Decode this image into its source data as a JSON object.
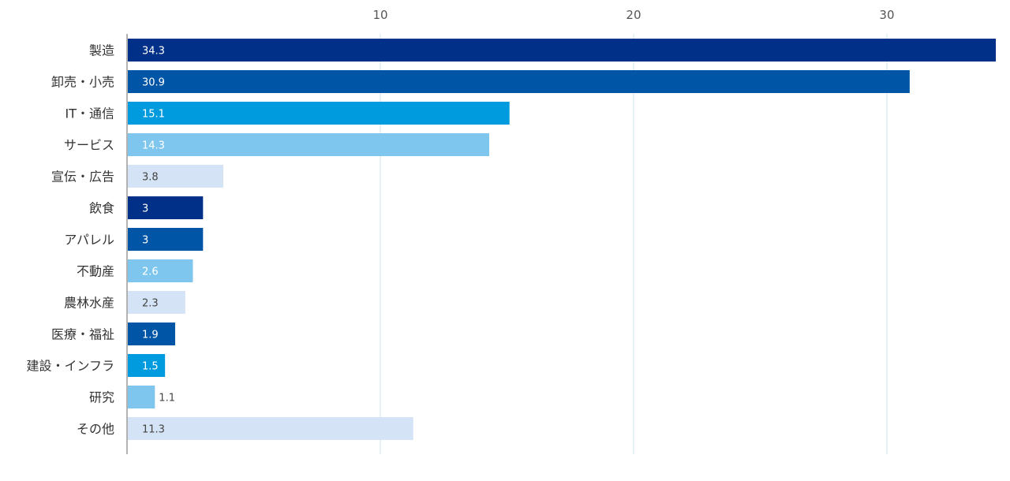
{
  "chart_data": {
    "type": "bar",
    "orientation": "horizontal",
    "title": "",
    "xlabel": "",
    "ylabel": "",
    "categories": [
      "製造",
      "卸売・小売",
      "IT・通信",
      "サービス",
      "宣伝・広告",
      "飲食",
      "アパレル",
      "不動産",
      "農林水産",
      "医療・福祉",
      "建設・インフラ",
      "研究",
      "その他"
    ],
    "values": [
      34.3,
      30.9,
      15.1,
      14.3,
      3.8,
      3,
      3,
      2.6,
      2.3,
      1.9,
      1.5,
      1.1,
      11.3
    ],
    "value_labels": [
      "34.3",
      "30.9",
      "15.1",
      "14.3",
      "3.8",
      "3",
      "3",
      "2.6",
      "2.3",
      "1.9",
      "1.5",
      "1.1",
      "11.3"
    ],
    "xticks": [
      10,
      20,
      30
    ],
    "xtick_labels": [
      "10",
      "20",
      "30"
    ],
    "xlim": [
      0,
      34.3
    ],
    "grid": true,
    "tick_position": "top",
    "colors": [
      "#003087",
      "#0055a6",
      "#009adf",
      "#7fc6ee",
      "#d4e3f5",
      "#003087",
      "#0055a6",
      "#7fc6ee",
      "#d4e3f5",
      "#0055a6",
      "#009adf",
      "#7fc6ee",
      "#d4e3f5"
    ],
    "grid_color": "#cfe6ee",
    "axis_color": "#666666"
  }
}
